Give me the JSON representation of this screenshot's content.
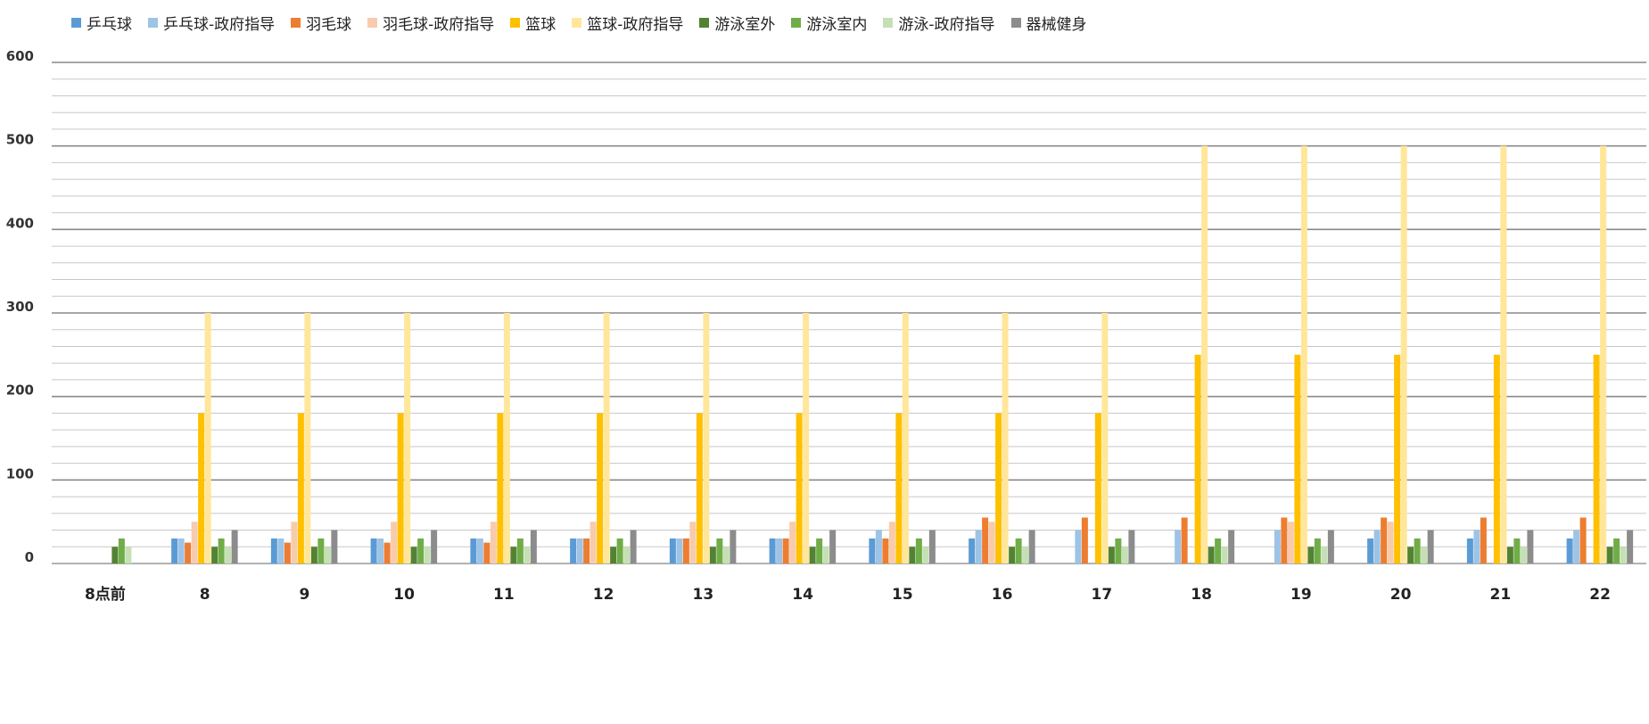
{
  "chart_data": {
    "type": "bar",
    "categories": [
      "8点前",
      "8",
      "9",
      "10",
      "11",
      "12",
      "13",
      "14",
      "15",
      "16",
      "17",
      "18",
      "19",
      "20",
      "21",
      "22"
    ],
    "ylim": [
      0,
      600
    ],
    "yticks": [
      0,
      100,
      200,
      300,
      400,
      500,
      600
    ],
    "grid": true,
    "legend_position": "top",
    "series": [
      {
        "name": "乒乓球",
        "color": "#5B9BD5",
        "values": [
          0,
          30,
          30,
          30,
          30,
          30,
          30,
          30,
          30,
          30,
          0,
          0,
          0,
          30,
          30,
          30
        ]
      },
      {
        "name": "乒乓球-政府指导",
        "color": "#9DC3E6",
        "values": [
          0,
          30,
          30,
          30,
          30,
          30,
          30,
          30,
          40,
          40,
          40,
          40,
          40,
          40,
          40,
          40
        ]
      },
      {
        "name": "羽毛球",
        "color": "#ED7D31",
        "values": [
          0,
          25,
          25,
          25,
          25,
          30,
          30,
          30,
          30,
          55,
          55,
          55,
          55,
          55,
          55,
          55
        ]
      },
      {
        "name": "羽毛球-政府指导",
        "color": "#F8CBAD",
        "values": [
          0,
          50,
          50,
          50,
          50,
          50,
          50,
          50,
          50,
          50,
          0,
          0,
          50,
          50,
          0,
          0
        ]
      },
      {
        "name": "篮球",
        "color": "#FFC000",
        "values": [
          0,
          180,
          180,
          180,
          180,
          180,
          180,
          180,
          180,
          180,
          180,
          250,
          250,
          250,
          250,
          250
        ]
      },
      {
        "name": "篮球-政府指导",
        "color": "#FFE699",
        "values": [
          0,
          300,
          300,
          300,
          300,
          300,
          300,
          300,
          300,
          300,
          300,
          500,
          500,
          500,
          500,
          500
        ]
      },
      {
        "name": "游泳室外",
        "color": "#548235",
        "values": [
          20,
          20,
          20,
          20,
          20,
          20,
          20,
          20,
          20,
          20,
          20,
          20,
          20,
          20,
          20,
          20
        ]
      },
      {
        "name": "游泳室内",
        "color": "#70AD47",
        "values": [
          30,
          30,
          30,
          30,
          30,
          30,
          30,
          30,
          30,
          30,
          30,
          30,
          30,
          30,
          30,
          30
        ]
      },
      {
        "name": "游泳-政府指导",
        "color": "#C5E0B4",
        "values": [
          20,
          20,
          20,
          20,
          20,
          20,
          20,
          20,
          20,
          20,
          20,
          20,
          20,
          20,
          20,
          20
        ]
      },
      {
        "name": "器械健身",
        "color": "#8C8C8C",
        "values": [
          0,
          40,
          40,
          40,
          40,
          40,
          40,
          40,
          40,
          40,
          40,
          40,
          40,
          40,
          40,
          40
        ]
      }
    ]
  }
}
